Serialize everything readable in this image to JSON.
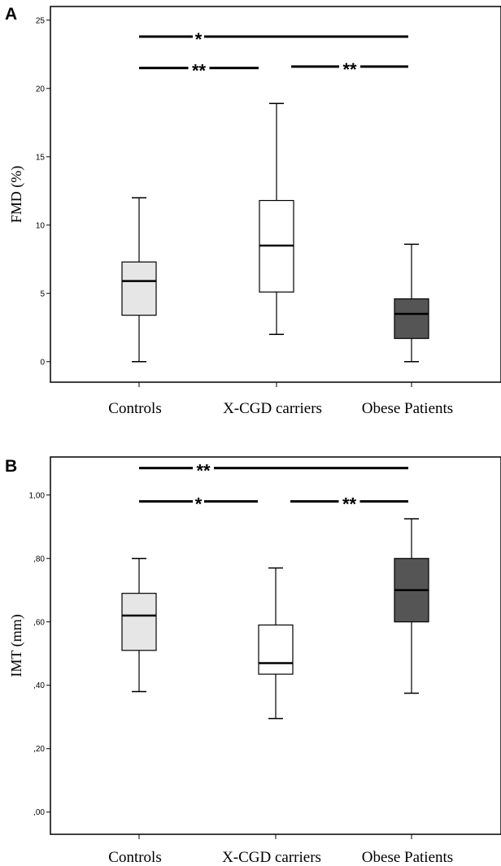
{
  "chart_data": [
    {
      "type": "box",
      "panel": "A",
      "ylabel": "FMD (%)",
      "ylim": [
        -1.5,
        26
      ],
      "yticks": [
        0,
        5,
        10,
        15,
        20,
        25
      ],
      "yticklabels": [
        "0",
        "5",
        "10",
        "15",
        "20",
        "25"
      ],
      "categories": [
        "Controls",
        "X-CGD carriers",
        "Obese Patients"
      ],
      "boxes": [
        {
          "whisker_low": 0,
          "q1": 3.4,
          "median": 5.9,
          "q3": 7.3,
          "whisker_high": 12.0,
          "fill": "#e6e6e6"
        },
        {
          "whisker_low": 2.0,
          "q1": 5.1,
          "median": 8.5,
          "q3": 11.8,
          "whisker_high": 18.9,
          "fill": "#ffffff"
        },
        {
          "whisker_low": 0,
          "q1": 1.7,
          "median": 3.5,
          "q3": 4.6,
          "whisker_high": 8.6,
          "fill": "#555555"
        }
      ],
      "significance": [
        {
          "from": 0,
          "to": 2,
          "label": "*",
          "y": 23.8
        },
        {
          "from": 0,
          "to": 1,
          "label": "**",
          "y": 21.5
        },
        {
          "from": 1,
          "to": 2,
          "label": "**",
          "y": 21.6
        }
      ]
    },
    {
      "type": "box",
      "panel": "B",
      "ylabel": "IMT (mm)",
      "ylim": [
        -0.07,
        1.12
      ],
      "yticks": [
        0,
        0.2,
        0.4,
        0.6,
        0.8,
        1.0
      ],
      "yticklabels": [
        ",00",
        ",20",
        ",40",
        ",60",
        ",80",
        "1,00"
      ],
      "categories": [
        "Controls",
        "X-CGD carriers",
        "Obese Patients"
      ],
      "boxes": [
        {
          "whisker_low": 0.38,
          "q1": 0.51,
          "median": 0.62,
          "q3": 0.69,
          "whisker_high": 0.8,
          "fill": "#e6e6e6"
        },
        {
          "whisker_low": 0.295,
          "q1": 0.435,
          "median": 0.47,
          "q3": 0.59,
          "whisker_high": 0.77,
          "fill": "#ffffff"
        },
        {
          "whisker_low": 0.375,
          "q1": 0.6,
          "median": 0.7,
          "q3": 0.8,
          "whisker_high": 0.925,
          "fill": "#555555"
        }
      ],
      "significance": [
        {
          "from": 0,
          "to": 2,
          "label": "**",
          "y": 1.085
        },
        {
          "from": 0,
          "to": 1,
          "label": "*",
          "y": 0.98
        },
        {
          "from": 1,
          "to": 2,
          "label": "**",
          "y": 0.98
        }
      ]
    }
  ]
}
